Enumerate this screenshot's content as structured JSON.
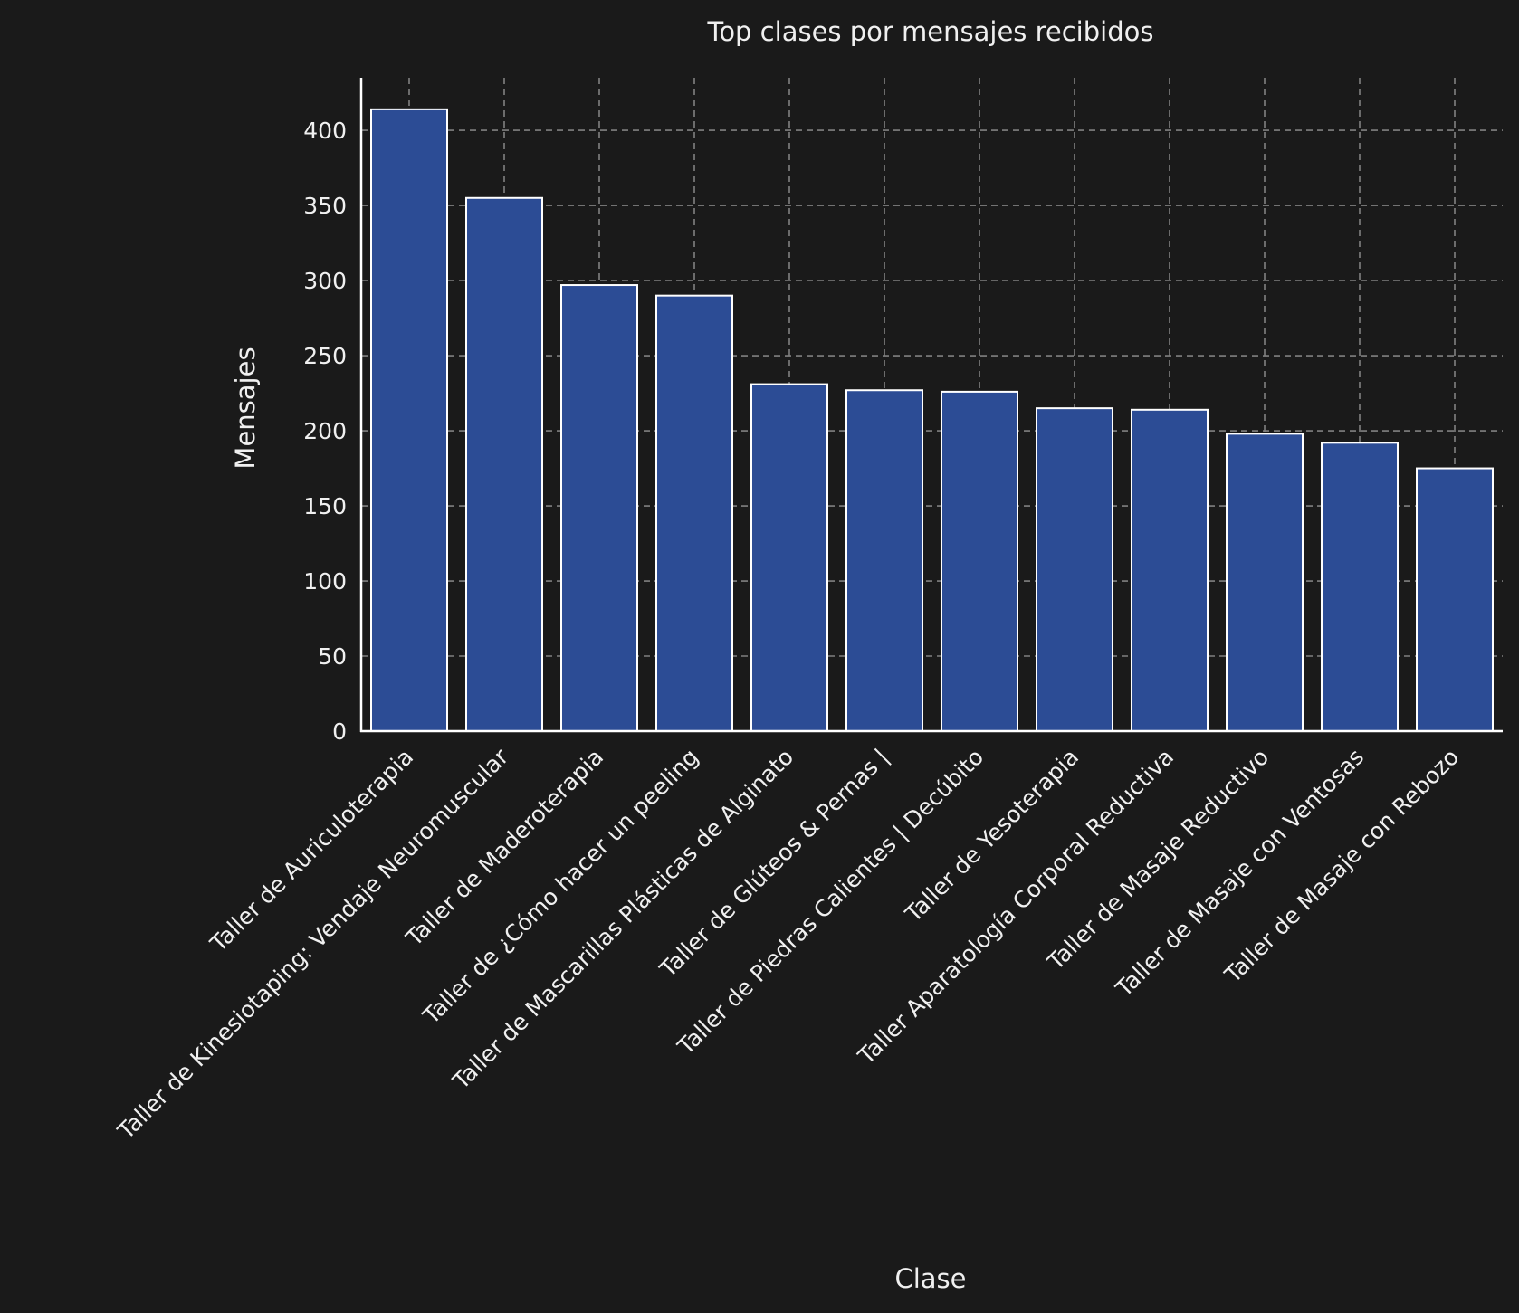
{
  "chart_data": {
    "type": "bar",
    "title": "Top clases por mensajes recibidos",
    "xlabel": "Clase",
    "ylabel": "Mensajes",
    "ylim": [
      0,
      435
    ],
    "yticks": [
      0,
      50,
      100,
      150,
      200,
      250,
      300,
      350,
      400
    ],
    "grid": true,
    "categories": [
      "Taller de Auriculoterapia",
      "Taller de Kinesiotaping: Vendaje Neuromuscular",
      "Taller de Maderoterapia",
      "Taller de ¿Cómo hacer un peeling",
      "Taller de Mascarillas Plásticas de Alginato",
      "Taller de Glúteos & Pernas |",
      "Taller de Piedras Calientes | Decúbito",
      "Taller de Yesoterapia",
      "Taller Aparatología Corporal Reductiva",
      "Taller de Masaje Reductivo",
      "Taller de Masaje con Ventosas",
      "Taller de Masaje con Rebozo"
    ],
    "values": [
      414,
      355,
      297,
      290,
      231,
      227,
      226,
      215,
      214,
      198,
      192,
      175
    ],
    "colors": {
      "background": "#1a1a1a",
      "bar_fill": "#2c4c95",
      "bar_edge": "#ffffff",
      "grid": "#808080",
      "text": "#f0f0f0"
    }
  }
}
